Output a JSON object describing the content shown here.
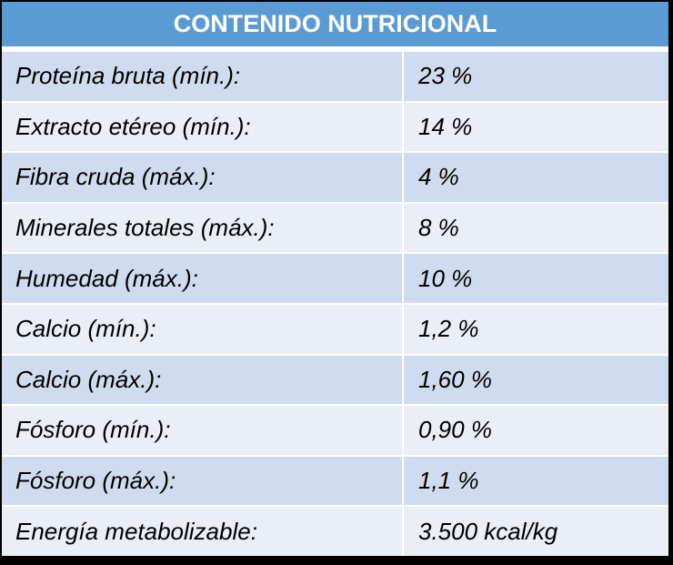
{
  "title": "CONTENIDO NUTRICIONAL",
  "rows": [
    {
      "label": "Proteína bruta (mín.):",
      "value": "23 %"
    },
    {
      "label": "Extracto etéreo (mín.):",
      "value": "14 %"
    },
    {
      "label": "Fibra cruda (máx.):",
      "value": "4 %"
    },
    {
      "label": "Minerales totales (máx.):",
      "value": "8 %"
    },
    {
      "label": "Humedad (máx.):",
      "value": "10 %"
    },
    {
      "label": "Calcio (mín.):",
      "value": "1,2 %"
    },
    {
      "label": "Calcio (máx.):",
      "value": "1,60 %"
    },
    {
      "label": "Fósforo (mín.):",
      "value": "0,90 %"
    },
    {
      "label": "Fósforo (máx.):",
      "value": "1,1 %"
    },
    {
      "label": "Energía metabolizable:",
      "value": "3.500 kcal/kg"
    }
  ],
  "colors": {
    "header": "#5b9bd5",
    "row_dark": "#cfdbef",
    "row_light": "#e9eef7"
  }
}
